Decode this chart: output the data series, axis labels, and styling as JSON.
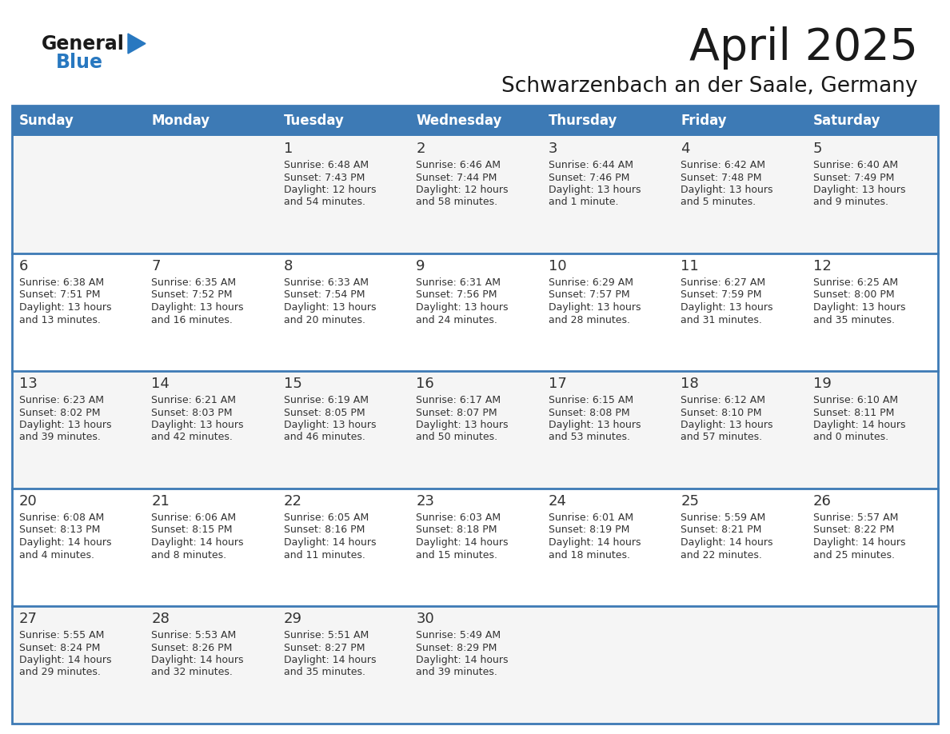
{
  "title": "April 2025",
  "subtitle": "Schwarzenbach an der Saale, Germany",
  "days_of_week": [
    "Sunday",
    "Monday",
    "Tuesday",
    "Wednesday",
    "Thursday",
    "Friday",
    "Saturday"
  ],
  "header_bg": "#3d7ab5",
  "header_text": "#ffffff",
  "row_bg_odd": "#f5f5f5",
  "row_bg_even": "#ffffff",
  "line_color": "#3d7ab5",
  "text_color": "#333333",
  "title_color": "#1a1a1a",
  "logo_general_color": "#1a1a1a",
  "logo_blue_color": "#2878c0",
  "calendar": [
    [
      {
        "day": null,
        "data": null
      },
      {
        "day": null,
        "data": null
      },
      {
        "day": 1,
        "data": "Sunrise: 6:48 AM\nSunset: 7:43 PM\nDaylight: 12 hours\nand 54 minutes."
      },
      {
        "day": 2,
        "data": "Sunrise: 6:46 AM\nSunset: 7:44 PM\nDaylight: 12 hours\nand 58 minutes."
      },
      {
        "day": 3,
        "data": "Sunrise: 6:44 AM\nSunset: 7:46 PM\nDaylight: 13 hours\nand 1 minute."
      },
      {
        "day": 4,
        "data": "Sunrise: 6:42 AM\nSunset: 7:48 PM\nDaylight: 13 hours\nand 5 minutes."
      },
      {
        "day": 5,
        "data": "Sunrise: 6:40 AM\nSunset: 7:49 PM\nDaylight: 13 hours\nand 9 minutes."
      }
    ],
    [
      {
        "day": 6,
        "data": "Sunrise: 6:38 AM\nSunset: 7:51 PM\nDaylight: 13 hours\nand 13 minutes."
      },
      {
        "day": 7,
        "data": "Sunrise: 6:35 AM\nSunset: 7:52 PM\nDaylight: 13 hours\nand 16 minutes."
      },
      {
        "day": 8,
        "data": "Sunrise: 6:33 AM\nSunset: 7:54 PM\nDaylight: 13 hours\nand 20 minutes."
      },
      {
        "day": 9,
        "data": "Sunrise: 6:31 AM\nSunset: 7:56 PM\nDaylight: 13 hours\nand 24 minutes."
      },
      {
        "day": 10,
        "data": "Sunrise: 6:29 AM\nSunset: 7:57 PM\nDaylight: 13 hours\nand 28 minutes."
      },
      {
        "day": 11,
        "data": "Sunrise: 6:27 AM\nSunset: 7:59 PM\nDaylight: 13 hours\nand 31 minutes."
      },
      {
        "day": 12,
        "data": "Sunrise: 6:25 AM\nSunset: 8:00 PM\nDaylight: 13 hours\nand 35 minutes."
      }
    ],
    [
      {
        "day": 13,
        "data": "Sunrise: 6:23 AM\nSunset: 8:02 PM\nDaylight: 13 hours\nand 39 minutes."
      },
      {
        "day": 14,
        "data": "Sunrise: 6:21 AM\nSunset: 8:03 PM\nDaylight: 13 hours\nand 42 minutes."
      },
      {
        "day": 15,
        "data": "Sunrise: 6:19 AM\nSunset: 8:05 PM\nDaylight: 13 hours\nand 46 minutes."
      },
      {
        "day": 16,
        "data": "Sunrise: 6:17 AM\nSunset: 8:07 PM\nDaylight: 13 hours\nand 50 minutes."
      },
      {
        "day": 17,
        "data": "Sunrise: 6:15 AM\nSunset: 8:08 PM\nDaylight: 13 hours\nand 53 minutes."
      },
      {
        "day": 18,
        "data": "Sunrise: 6:12 AM\nSunset: 8:10 PM\nDaylight: 13 hours\nand 57 minutes."
      },
      {
        "day": 19,
        "data": "Sunrise: 6:10 AM\nSunset: 8:11 PM\nDaylight: 14 hours\nand 0 minutes."
      }
    ],
    [
      {
        "day": 20,
        "data": "Sunrise: 6:08 AM\nSunset: 8:13 PM\nDaylight: 14 hours\nand 4 minutes."
      },
      {
        "day": 21,
        "data": "Sunrise: 6:06 AM\nSunset: 8:15 PM\nDaylight: 14 hours\nand 8 minutes."
      },
      {
        "day": 22,
        "data": "Sunrise: 6:05 AM\nSunset: 8:16 PM\nDaylight: 14 hours\nand 11 minutes."
      },
      {
        "day": 23,
        "data": "Sunrise: 6:03 AM\nSunset: 8:18 PM\nDaylight: 14 hours\nand 15 minutes."
      },
      {
        "day": 24,
        "data": "Sunrise: 6:01 AM\nSunset: 8:19 PM\nDaylight: 14 hours\nand 18 minutes."
      },
      {
        "day": 25,
        "data": "Sunrise: 5:59 AM\nSunset: 8:21 PM\nDaylight: 14 hours\nand 22 minutes."
      },
      {
        "day": 26,
        "data": "Sunrise: 5:57 AM\nSunset: 8:22 PM\nDaylight: 14 hours\nand 25 minutes."
      }
    ],
    [
      {
        "day": 27,
        "data": "Sunrise: 5:55 AM\nSunset: 8:24 PM\nDaylight: 14 hours\nand 29 minutes."
      },
      {
        "day": 28,
        "data": "Sunrise: 5:53 AM\nSunset: 8:26 PM\nDaylight: 14 hours\nand 32 minutes."
      },
      {
        "day": 29,
        "data": "Sunrise: 5:51 AM\nSunset: 8:27 PM\nDaylight: 14 hours\nand 35 minutes."
      },
      {
        "day": 30,
        "data": "Sunrise: 5:49 AM\nSunset: 8:29 PM\nDaylight: 14 hours\nand 39 minutes."
      },
      {
        "day": null,
        "data": null
      },
      {
        "day": null,
        "data": null
      },
      {
        "day": null,
        "data": null
      }
    ]
  ]
}
